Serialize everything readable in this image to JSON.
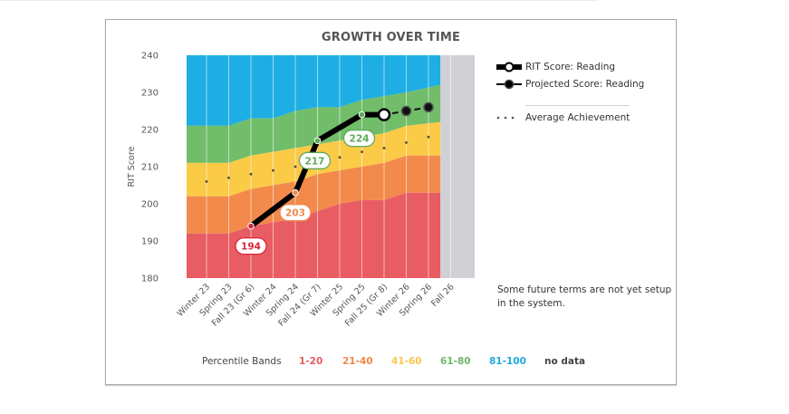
{
  "chart_data": {
    "type": "line",
    "title": "GROWTH OVER TIME",
    "xlabel": "",
    "ylabel": "RIT Score",
    "ylim": [
      180,
      240
    ],
    "yticks": [
      180,
      190,
      200,
      210,
      220,
      230,
      240
    ],
    "categories": [
      "Winter 23",
      "Spring 23",
      "Fall 23 (Gr 6)",
      "Winter 24",
      "Spring 24",
      "Fall 24 (Gr 7)",
      "Winter 25",
      "Spring 25",
      "Fall 25 (Gr 8)",
      "Winter 26",
      "Spring 26",
      "Fall 26"
    ],
    "no_data_from_index": 11,
    "percentile_bands": {
      "x_index": [
        0,
        1,
        2,
        3,
        4,
        5,
        6,
        7,
        8,
        9,
        10,
        11
      ],
      "p20_upper": [
        192,
        192,
        194,
        195,
        196,
        198,
        200,
        201,
        201,
        203,
        203,
        203
      ],
      "p40_upper": [
        202,
        202,
        204,
        205,
        206,
        208,
        209,
        210,
        211,
        213,
        213,
        213
      ],
      "p60_upper": [
        211,
        211,
        213,
        214,
        215,
        216,
        217,
        218,
        219,
        221,
        222,
        222
      ],
      "p80_upper": [
        221,
        221,
        223,
        223,
        225,
        226,
        226,
        228,
        229,
        230,
        232,
        232
      ],
      "p100_upper": [
        240,
        240,
        240,
        240,
        240,
        240,
        240,
        240,
        240,
        240,
        240,
        240
      ]
    },
    "series": [
      {
        "name": "RIT Score: Reading",
        "points": [
          {
            "x": 2,
            "y": 194,
            "label": "194",
            "band": "1-20"
          },
          {
            "x": 4,
            "y": 203,
            "label": "203",
            "band": "21-40"
          },
          {
            "x": 5,
            "y": 217,
            "label": "217",
            "band": "61-80"
          },
          {
            "x": 7,
            "y": 224,
            "label": "224",
            "band": "61-80"
          },
          {
            "x": 8,
            "y": 224,
            "label": "",
            "band": "61-80"
          }
        ]
      },
      {
        "name": "Projected Score: Reading",
        "points": [
          {
            "x": 8,
            "y": 224
          },
          {
            "x": 9,
            "y": 225
          },
          {
            "x": 10,
            "y": 226
          }
        ]
      },
      {
        "name": "Average Achievement",
        "points": [
          {
            "x": 0,
            "y": 206
          },
          {
            "x": 1,
            "y": 207
          },
          {
            "x": 2,
            "y": 208
          },
          {
            "x": 3,
            "y": 209
          },
          {
            "x": 4,
            "y": 210
          },
          {
            "x": 5,
            "y": 211
          },
          {
            "x": 6,
            "y": 212.5
          },
          {
            "x": 7,
            "y": 214
          },
          {
            "x": 8,
            "y": 215
          },
          {
            "x": 9,
            "y": 216.5
          },
          {
            "x": 10,
            "y": 218
          }
        ]
      }
    ],
    "legend": [
      "RIT Score: Reading",
      "Projected Score: Reading",
      "Average Achievement"
    ],
    "legend_position": "right",
    "grid": false
  },
  "legend": {
    "rit": "RIT Score: Reading",
    "projected": "Projected Score: Reading",
    "average": "Average Achievement"
  },
  "note": "Some future terms are not yet setup in the system.",
  "bands_legend": {
    "label": "Percentile Bands",
    "items": [
      {
        "label": "1-20",
        "color": "#e55a60"
      },
      {
        "label": "21-40",
        "color": "#f0894b"
      },
      {
        "label": "41-60",
        "color": "#f8c84a"
      },
      {
        "label": "61-80",
        "color": "#6cb866"
      },
      {
        "label": "81-100",
        "color": "#1fa8e0"
      },
      {
        "label": "no data",
        "color": "#444444"
      }
    ]
  },
  "colors": {
    "band_1_20": "#e85c63",
    "band_21_40": "#f28a4b",
    "band_41_60": "#fbca47",
    "band_61_80": "#71bd6a",
    "band_81_100": "#1eaee3",
    "no_data": "#d0d1d4"
  }
}
